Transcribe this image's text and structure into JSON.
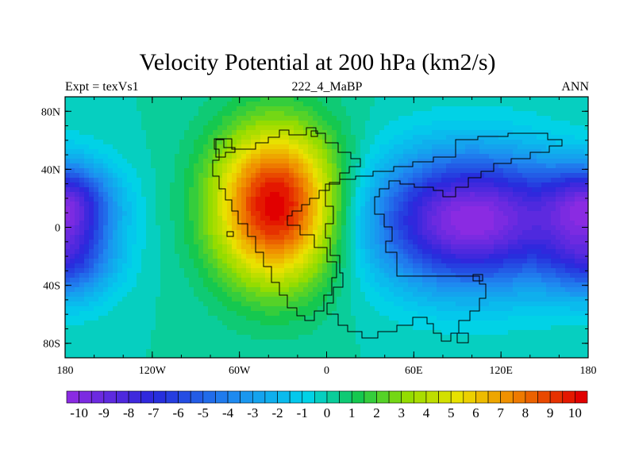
{
  "title": "Velocity Potential at 200 hPa (km2/s)",
  "subtitle_left": "Expt = texVs1",
  "subtitle_center": "222_4_MaBP",
  "subtitle_right": "ANN",
  "map": {
    "projection": "cylindrical-equidistant",
    "lon_range": [
      -180,
      180
    ],
    "lat_range": [
      -90,
      90
    ],
    "x_ticks": [
      {
        "value": -180,
        "label": "180"
      },
      {
        "value": -120,
        "label": "120W"
      },
      {
        "value": -60,
        "label": "60W"
      },
      {
        "value": 0,
        "label": "0"
      },
      {
        "value": 60,
        "label": "60E"
      },
      {
        "value": 120,
        "label": "120E"
      },
      {
        "value": 180,
        "label": "180"
      }
    ],
    "y_ticks": [
      {
        "value": 80,
        "label": "80N"
      },
      {
        "value": 40,
        "label": "40N"
      },
      {
        "value": 0,
        "label": "0"
      },
      {
        "value": -40,
        "label": "40S"
      },
      {
        "value": -80,
        "label": "80S"
      }
    ],
    "field_centers": [
      {
        "lon": -35,
        "lat": 15,
        "amp": 10.5,
        "sx": 30,
        "sy": 38
      },
      {
        "lon": 100,
        "lat": 5,
        "amp": -10.5,
        "sx": 48,
        "sy": 32
      },
      {
        "lon": -178,
        "lat": 18,
        "amp": -6.5,
        "sx": 22,
        "sy": 18
      },
      {
        "lon": -178,
        "lat": -20,
        "amp": -5.5,
        "sx": 22,
        "sy": 20
      }
    ]
  },
  "colorbar": {
    "min": -10,
    "max": 10,
    "step": 0.5,
    "labels": [
      "-10",
      "-9",
      "-8",
      "-7",
      "-6",
      "-5",
      "-4",
      "-3",
      "-2",
      "-1",
      "0",
      "1",
      "2",
      "3",
      "4",
      "5",
      "6",
      "7",
      "8",
      "9",
      "10"
    ]
  }
}
